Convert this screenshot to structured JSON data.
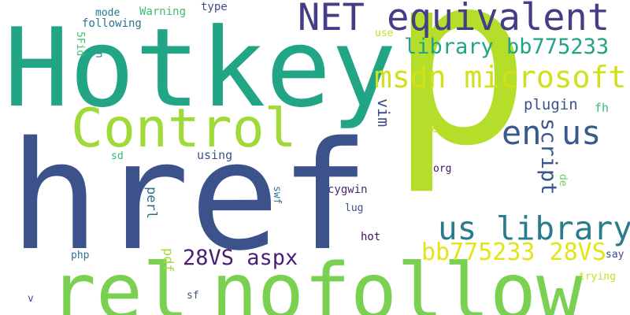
{
  "words": {
    "p": {
      "text": "p",
      "color": "#b5de2b"
    },
    "href": {
      "text": "href",
      "color": "#3b528b"
    },
    "hotkey": {
      "text": "Hotkey",
      "color": "#21a585"
    },
    "nofollow": {
      "text": "nofollow",
      "color": "#7ad151"
    },
    "rel": {
      "text": "rel",
      "color": "#7ad151"
    },
    "control": {
      "text": "Control",
      "color": "#a0da39"
    },
    "net_equivalent": {
      "text": "NET equivalent",
      "color": "#433e85"
    },
    "msdn_microsoft": {
      "text": "msdn microsoft",
      "color": "#d0e11c"
    },
    "en_us": {
      "text": "en us",
      "color": "#38598c"
    },
    "library_bb775233": {
      "text": "library bb775233",
      "color": "#20a386"
    },
    "us_library": {
      "text": "us library",
      "color": "#287c8e"
    },
    "bb775233_28vs": {
      "text": "bb775233 28VS",
      "color": "#e2e418"
    },
    "28vs_aspx": {
      "text": "28VS aspx",
      "color": "#481f70"
    },
    "script": {
      "text": "script",
      "color": "#39568c"
    },
    "plugin": {
      "text": "plugin",
      "color": "#3b528b"
    },
    "vim": {
      "text": "vim",
      "color": "#3e4989"
    },
    "perl": {
      "text": "perl",
      "color": "#2c728e"
    },
    "pdf": {
      "text": "pdf",
      "color": "#a5db36"
    },
    "swf": {
      "text": "swf",
      "color": "#2a788e"
    },
    "mode": {
      "text": "mode",
      "color": "#2a788e"
    },
    "warning": {
      "text": "Warning",
      "color": "#3dbc74"
    },
    "type": {
      "text": "type",
      "color": "#3e4989"
    },
    "following": {
      "text": "following",
      "color": "#2c728e"
    },
    "fid": {
      "text": "5Fid",
      "color": "#44bf70"
    },
    "n": {
      "text": "n",
      "color": "#287d8e"
    },
    "use": {
      "text": "use",
      "color": "#bddf26"
    },
    "keys": {
      "text": "keys",
      "color": "#bddf26"
    },
    "fh": {
      "text": "fh",
      "color": "#3dbc74"
    },
    "de": {
      "text": "de",
      "color": "#6ece58"
    },
    "sd": {
      "text": "sd",
      "color": "#35b779"
    },
    "using": {
      "text": "using",
      "color": "#3b528b"
    },
    "org": {
      "text": "org",
      "color": "#471063"
    },
    "cygwin": {
      "text": "cygwin",
      "color": "#482878"
    },
    "lug": {
      "text": "lug",
      "color": "#3b528b"
    },
    "hot": {
      "text": "hot",
      "color": "#471063"
    },
    "say": {
      "text": "say",
      "color": "#3e4989"
    },
    "trying": {
      "text": "trying",
      "color": "#c8e020"
    },
    "php": {
      "text": "php",
      "color": "#2c728e"
    },
    "sf": {
      "text": "sf",
      "color": "#3b528b"
    },
    "v": {
      "text": "v",
      "color": "#3e4989"
    }
  }
}
